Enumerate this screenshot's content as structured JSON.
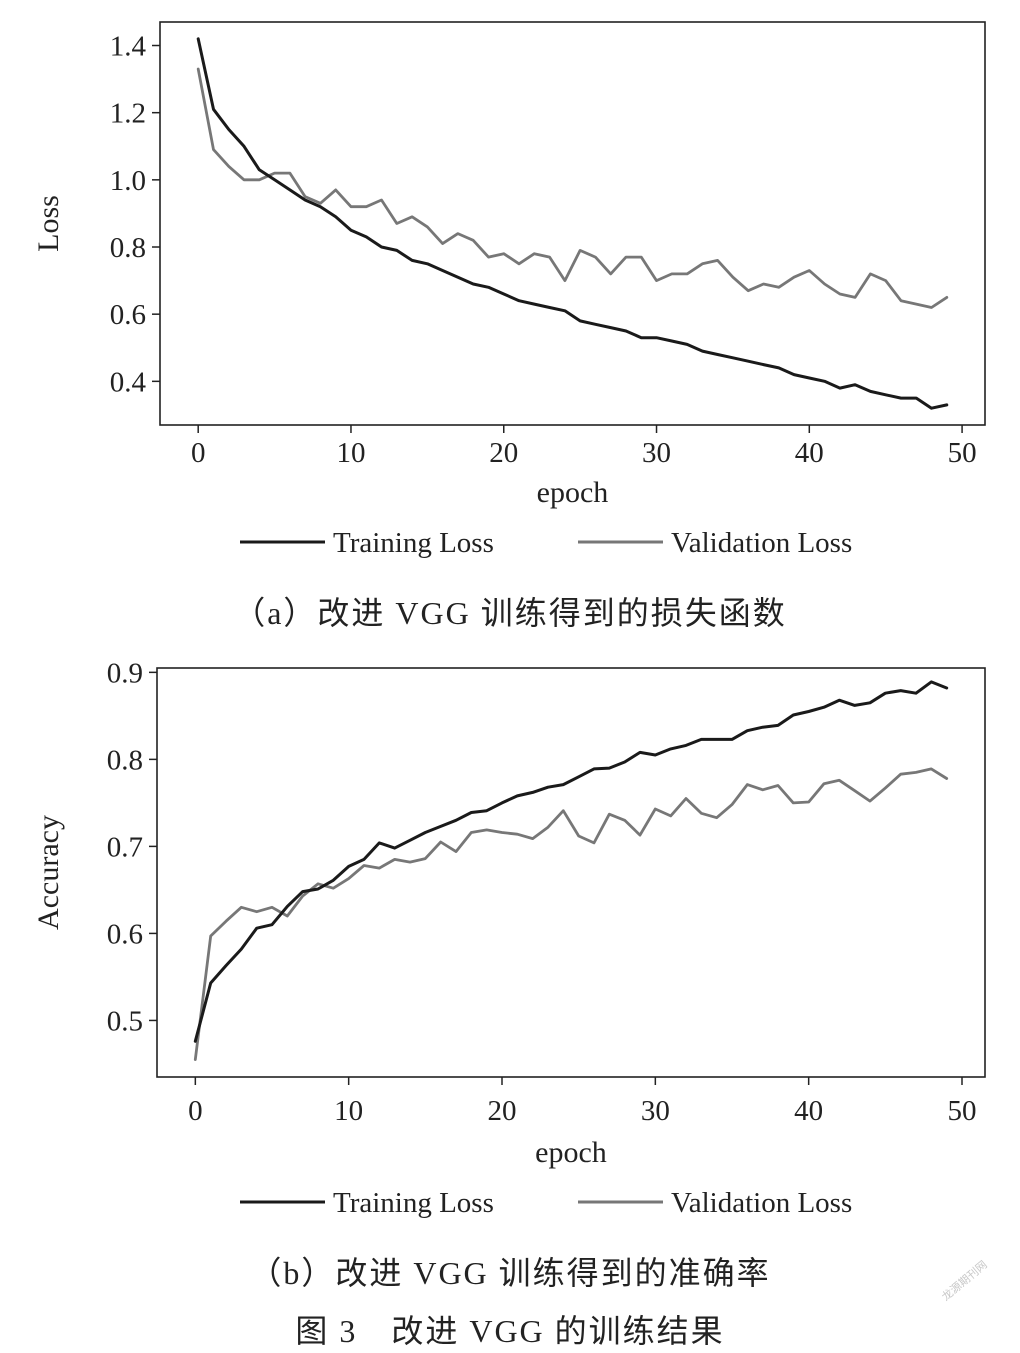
{
  "figure_caption": "图 3　改进 VGG 的训练结果",
  "watermark": "龙源期刊网",
  "colors": {
    "training": "#1a1a1a",
    "validation": "#777777",
    "axis": "#222222"
  },
  "chart_data": [
    {
      "type": "line",
      "caption": "（a）改进 VGG 训练得到的损失函数",
      "xlabel": "epoch",
      "ylabel": "Loss",
      "xlim": [
        -2.5,
        51.5
      ],
      "ylim": [
        0.27,
        1.47
      ],
      "xticks": [
        0,
        10,
        20,
        30,
        40,
        50
      ],
      "yticks": [
        0.4,
        0.6,
        0.8,
        1.0,
        1.2,
        1.4
      ],
      "ytick_labels": [
        "0.4",
        "0.6",
        "0.8",
        "1.0",
        "1.2",
        "1.4"
      ],
      "grid": false,
      "legend_position": "bottom",
      "x": [
        0,
        1,
        2,
        3,
        4,
        5,
        6,
        7,
        8,
        9,
        10,
        11,
        12,
        13,
        14,
        15,
        16,
        17,
        18,
        19,
        20,
        21,
        22,
        23,
        24,
        25,
        26,
        27,
        28,
        29,
        30,
        31,
        32,
        33,
        34,
        35,
        36,
        37,
        38,
        39,
        40,
        41,
        42,
        43,
        44,
        45,
        46,
        47,
        48,
        49
      ],
      "series": [
        {
          "name": "Training Loss",
          "values": [
            1.42,
            1.21,
            1.15,
            1.1,
            1.03,
            1.0,
            0.97,
            0.94,
            0.92,
            0.89,
            0.85,
            0.83,
            0.8,
            0.79,
            0.76,
            0.75,
            0.73,
            0.71,
            0.69,
            0.68,
            0.66,
            0.64,
            0.63,
            0.62,
            0.61,
            0.58,
            0.57,
            0.56,
            0.55,
            0.53,
            0.53,
            0.52,
            0.51,
            0.49,
            0.48,
            0.47,
            0.46,
            0.45,
            0.44,
            0.42,
            0.41,
            0.4,
            0.38,
            0.39,
            0.37,
            0.36,
            0.35,
            0.35,
            0.32,
            0.33
          ]
        },
        {
          "name": "Validation Loss",
          "values": [
            1.33,
            1.09,
            1.04,
            1.0,
            1.0,
            1.02,
            1.02,
            0.95,
            0.93,
            0.97,
            0.92,
            0.92,
            0.94,
            0.87,
            0.89,
            0.86,
            0.81,
            0.84,
            0.82,
            0.77,
            0.78,
            0.75,
            0.78,
            0.77,
            0.7,
            0.79,
            0.77,
            0.72,
            0.77,
            0.77,
            0.7,
            0.72,
            0.72,
            0.75,
            0.76,
            0.71,
            0.67,
            0.69,
            0.68,
            0.71,
            0.73,
            0.69,
            0.66,
            0.65,
            0.72,
            0.7,
            0.64,
            0.63,
            0.62,
            0.65
          ]
        }
      ]
    },
    {
      "type": "line",
      "caption": "（b）改进 VGG 训练得到的准确率",
      "xlabel": "epoch",
      "ylabel": "Accuracy",
      "xlim": [
        -2.5,
        51.5
      ],
      "ylim": [
        0.435,
        0.905
      ],
      "xticks": [
        0,
        10,
        20,
        30,
        40,
        50
      ],
      "yticks": [
        0.5,
        0.6,
        0.7,
        0.8,
        0.9
      ],
      "ytick_labels": [
        "0.5",
        "0.6",
        "0.7",
        "0.8",
        "0.9"
      ],
      "grid": false,
      "legend_position": "bottom",
      "x": [
        0,
        1,
        2,
        3,
        4,
        5,
        6,
        7,
        8,
        9,
        10,
        11,
        12,
        13,
        14,
        15,
        16,
        17,
        18,
        19,
        20,
        21,
        22,
        23,
        24,
        25,
        26,
        27,
        28,
        29,
        30,
        31,
        32,
        33,
        34,
        35,
        36,
        37,
        38,
        39,
        40,
        41,
        42,
        43,
        44,
        45,
        46,
        47,
        48,
        49
      ],
      "series": [
        {
          "name": "Training Loss",
          "values": [
            0.476,
            0.543,
            0.563,
            0.582,
            0.606,
            0.61,
            0.631,
            0.648,
            0.651,
            0.661,
            0.677,
            0.685,
            0.704,
            0.698,
            0.707,
            0.716,
            0.723,
            0.73,
            0.739,
            0.741,
            0.75,
            0.758,
            0.762,
            0.768,
            0.771,
            0.78,
            0.789,
            0.79,
            0.797,
            0.808,
            0.805,
            0.812,
            0.816,
            0.823,
            0.823,
            0.823,
            0.833,
            0.837,
            0.839,
            0.851,
            0.855,
            0.86,
            0.868,
            0.862,
            0.865,
            0.876,
            0.879,
            0.876,
            0.889,
            0.882
          ]
        },
        {
          "name": "Validation Loss",
          "values": [
            0.455,
            0.597,
            0.614,
            0.63,
            0.625,
            0.63,
            0.62,
            0.643,
            0.657,
            0.652,
            0.663,
            0.678,
            0.675,
            0.685,
            0.682,
            0.686,
            0.705,
            0.694,
            0.716,
            0.719,
            0.716,
            0.714,
            0.709,
            0.722,
            0.741,
            0.712,
            0.704,
            0.737,
            0.73,
            0.713,
            0.743,
            0.735,
            0.755,
            0.738,
            0.733,
            0.748,
            0.771,
            0.765,
            0.77,
            0.75,
            0.751,
            0.772,
            0.776,
            0.764,
            0.752,
            0.767,
            0.783,
            0.785,
            0.789,
            0.778
          ]
        }
      ]
    }
  ]
}
